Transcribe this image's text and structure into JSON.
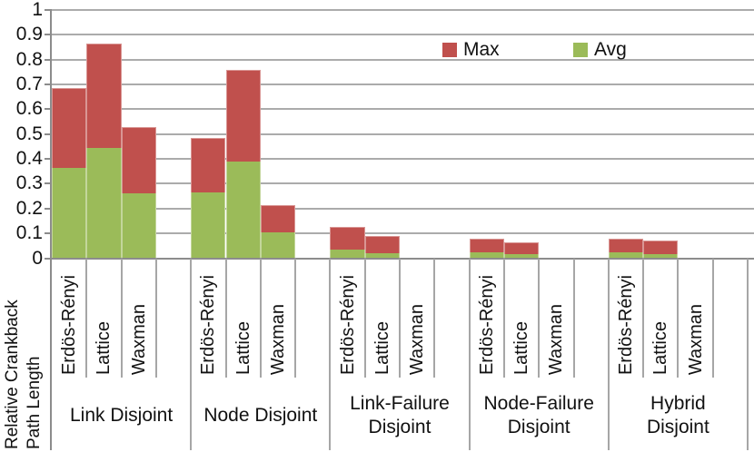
{
  "chart_data": {
    "type": "bar",
    "stacked": true,
    "title": "",
    "ylabel": "Relative Crankback Path Length",
    "ylabel_lines": [
      "Relative Crankback",
      "Path Length"
    ],
    "xlabel": "",
    "ylim": [
      0,
      1
    ],
    "ytick_step": 0.1,
    "ytick_labels_top_to_bottom": [
      "1",
      "0.9",
      "0.8",
      "0.7",
      "0.6",
      "0.5",
      "0.4",
      "0.3",
      "0.2",
      "0.1",
      "0"
    ],
    "grid": "horizontal",
    "legend_position": "inside-top-right",
    "stacking_note": "green segment height = Avg; red segment drawn above it so its top edge = Max",
    "legend": [
      {
        "name": "Max",
        "color": "#C0504D"
      },
      {
        "name": "Avg",
        "color": "#9BBB59"
      }
    ],
    "categories_per_group": [
      "Erdös-Rényi",
      "Lattice",
      "Waxman"
    ],
    "groups": [
      {
        "label": "Link Disjoint",
        "label_lines": [
          "Link Disjoint"
        ],
        "bars": [
          {
            "category": "Erdös-Rényi",
            "avg": 0.365,
            "max": 0.685
          },
          {
            "category": "Lattice",
            "avg": 0.445,
            "max": 0.865
          },
          {
            "category": "Waxman",
            "avg": 0.26,
            "max": 0.53
          }
        ]
      },
      {
        "label": "Node Disjoint",
        "label_lines": [
          "Node Disjoint"
        ],
        "bars": [
          {
            "category": "Erdös-Rényi",
            "avg": 0.265,
            "max": 0.485
          },
          {
            "category": "Lattice",
            "avg": 0.39,
            "max": 0.76
          },
          {
            "category": "Waxman",
            "avg": 0.105,
            "max": 0.215
          }
        ]
      },
      {
        "label": "Link-Failure Disjoint",
        "label_lines": [
          "Link-Failure",
          "Disjoint"
        ],
        "bars": [
          {
            "category": "Erdös-Rényi",
            "avg": 0.035,
            "max": 0.125
          },
          {
            "category": "Lattice",
            "avg": 0.02,
            "max": 0.09
          },
          {
            "category": "Waxman",
            "avg": 0,
            "max": 0
          }
        ]
      },
      {
        "label": "Node-Failure Disjoint",
        "label_lines": [
          "Node-Failure",
          "Disjoint"
        ],
        "bars": [
          {
            "category": "Erdös-Rényi",
            "avg": 0.025,
            "max": 0.08
          },
          {
            "category": "Lattice",
            "avg": 0.015,
            "max": 0.065
          },
          {
            "category": "Waxman",
            "avg": 0,
            "max": 0
          }
        ]
      },
      {
        "label": "Hybrid Disjoint",
        "label_lines": [
          "Hybrid",
          "Disjoint"
        ],
        "bars": [
          {
            "category": "Erdös-Rényi",
            "avg": 0.025,
            "max": 0.08
          },
          {
            "category": "Lattice",
            "avg": 0.015,
            "max": 0.07
          },
          {
            "category": "Waxman",
            "avg": 0,
            "max": 0
          }
        ]
      }
    ],
    "colors": {
      "max": "#C0504D",
      "avg": "#9BBB59",
      "gridline": "#ABABAB",
      "axis": "#8C8C8C",
      "separator": "#A6A6A6",
      "text": "#111111"
    }
  }
}
